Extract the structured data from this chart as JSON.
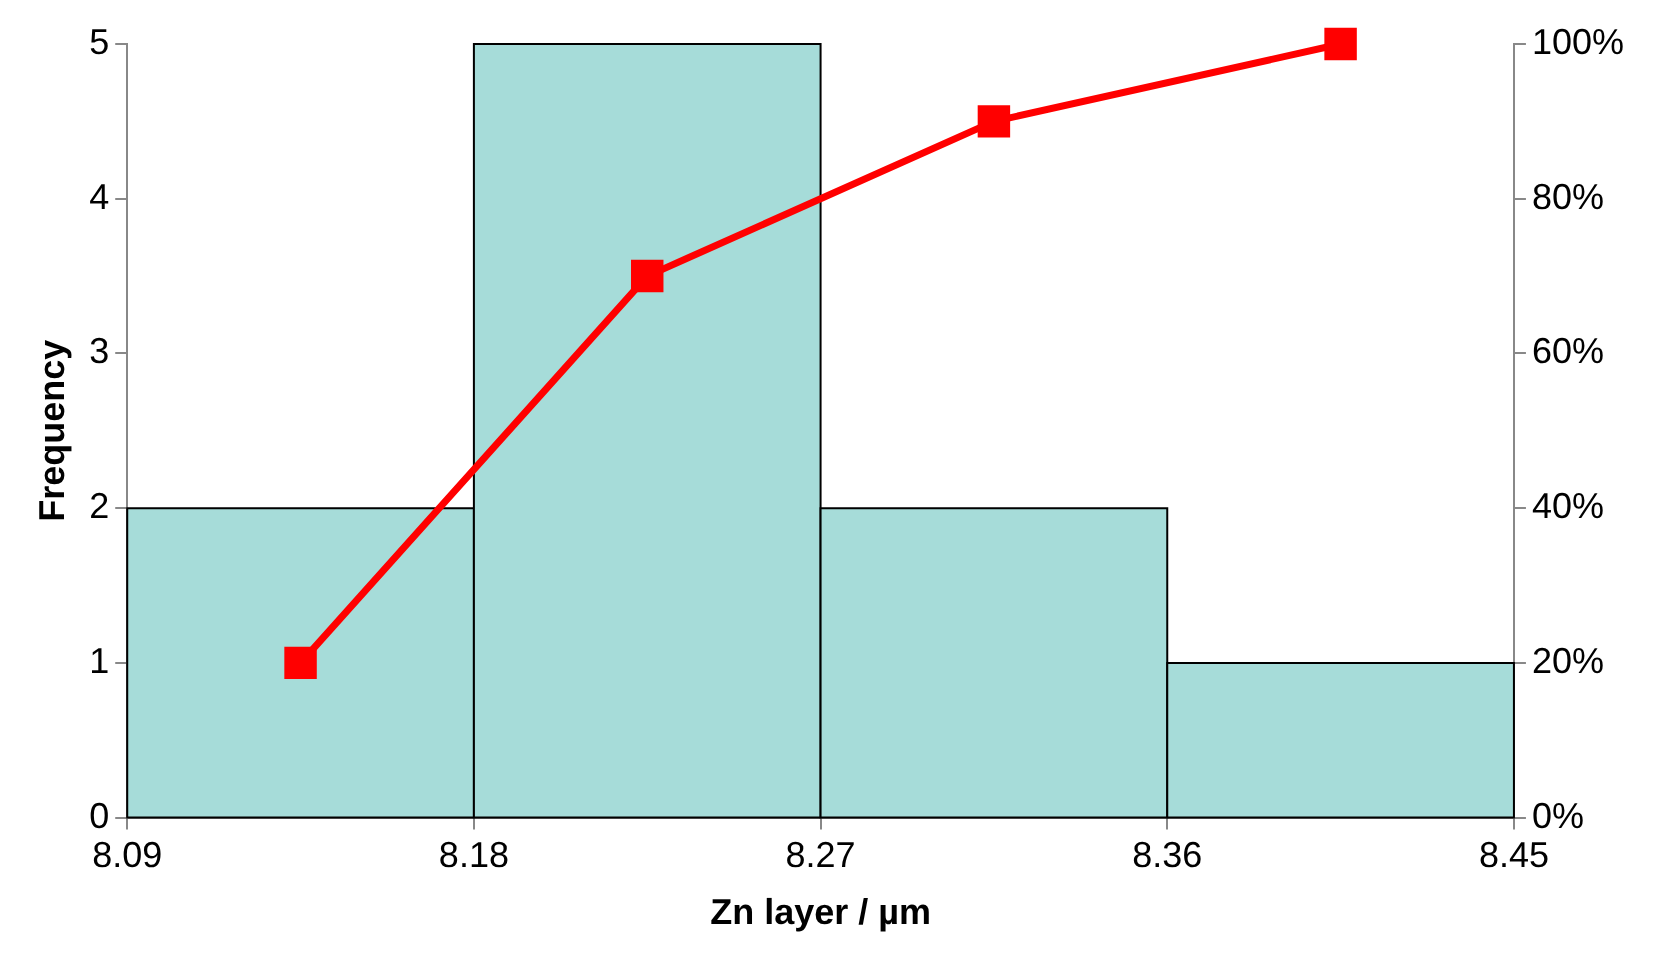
{
  "chart_data": {
    "type": "histogram",
    "xlabel": "Zn layer / µm",
    "ylabel": "Frequency",
    "bins": [
      8.09,
      8.18,
      8.27,
      8.36,
      8.45
    ],
    "values": [
      2,
      5,
      2,
      1
    ],
    "color": "#a6dcd9",
    "xlim": [
      8.09,
      8.45
    ],
    "xticks": [
      8.09,
      8.18,
      8.27,
      8.36,
      8.45
    ],
    "ylim": [
      0,
      5
    ],
    "yticks": [
      0,
      1,
      2,
      3,
      4,
      5
    ],
    "y2lim": [
      0,
      100
    ],
    "y2ticks": [
      {
        "value": 0,
        "label": "0%"
      },
      {
        "value": 20,
        "label": "20%"
      },
      {
        "value": 40,
        "label": "40%"
      },
      {
        "value": 60,
        "label": "60%"
      },
      {
        "value": 80,
        "label": "80%"
      },
      {
        "value": 100,
        "label": "100%"
      }
    ],
    "grid": false,
    "legend": false,
    "series": [
      {
        "type": "line",
        "axis": "y2",
        "color": "#ff0000",
        "x": [
          8.135,
          8.225,
          8.315,
          8.405
        ],
        "values": [
          20,
          70,
          90,
          100
        ],
        "marker": "square",
        "line_style": "solid"
      }
    ]
  }
}
